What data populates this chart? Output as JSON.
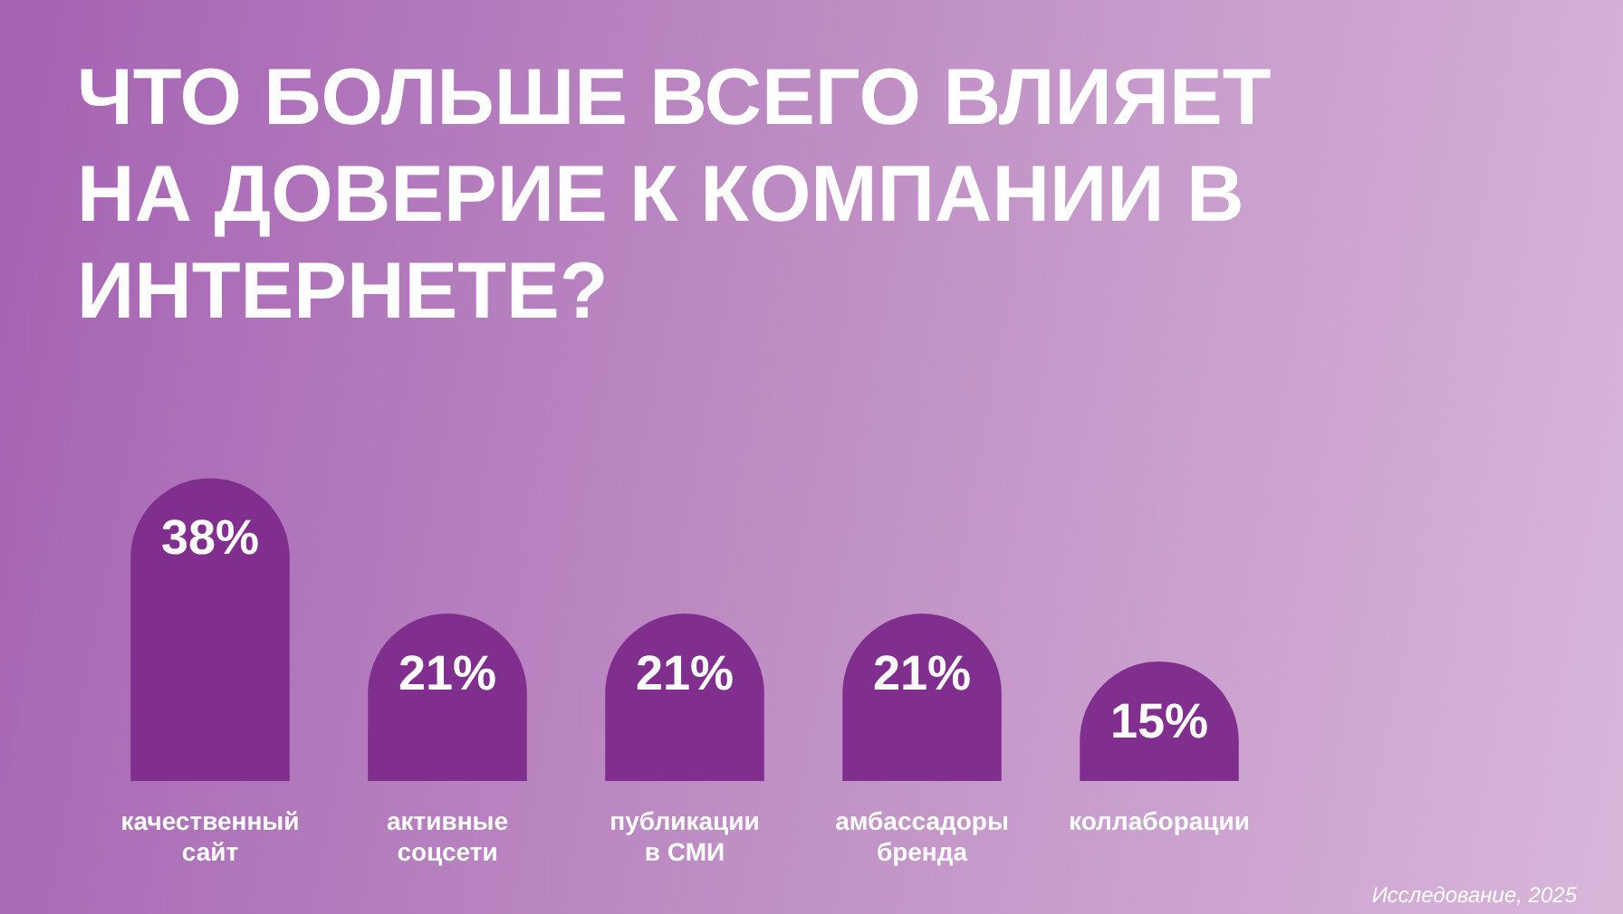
{
  "chart_data": {
    "type": "bar",
    "title": "ЧТО БОЛЬШЕ ВСЕГО ВЛИЯЕТ НА ДОВЕРИЕ К КОМПАНИИ В ИНТЕРНЕТЕ?",
    "categories": [
      "качественный сайт",
      "активные соцсети",
      "публикации в СМИ",
      "амбассадоры бренда",
      "коллаборации"
    ],
    "values": [
      38,
      21,
      21,
      21,
      15
    ],
    "color": "#812f8e",
    "value_labels": [
      "38%",
      "21%",
      "21%",
      "21%",
      "15%"
    ],
    "tick_labels": "x",
    "annotations": [
      "Исследование, 2025"
    ]
  }
}
